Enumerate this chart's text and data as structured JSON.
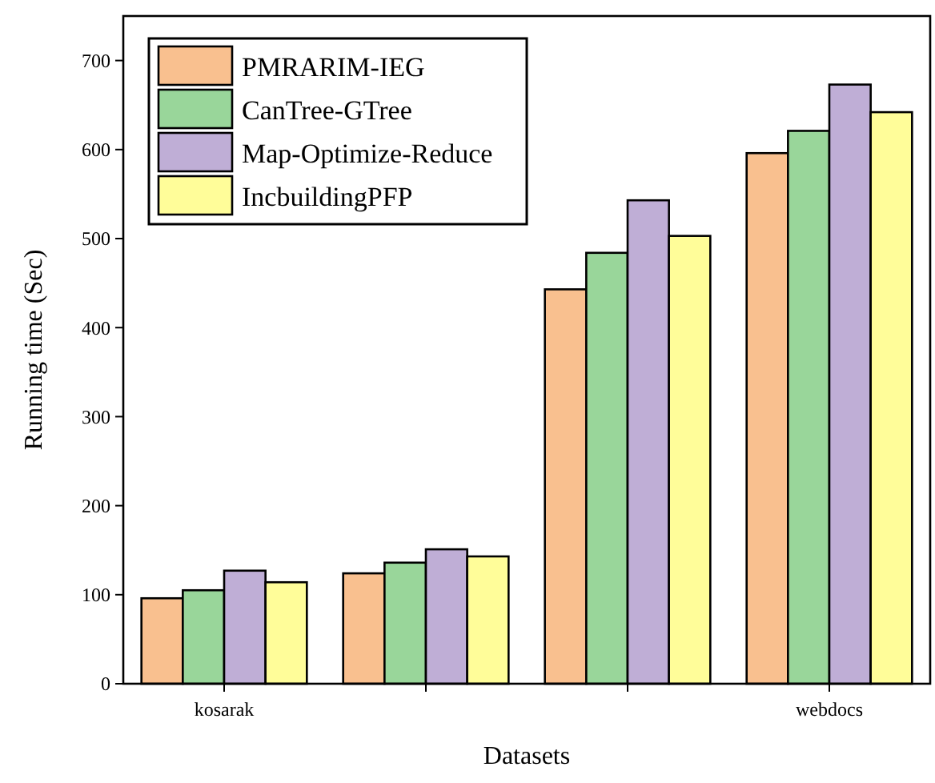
{
  "chart_data": {
    "type": "bar",
    "xlabel": "Datasets",
    "ylabel": "Running time (Sec)",
    "categories": [
      "kosarak",
      null,
      null,
      "webdocs"
    ],
    "series": [
      {
        "name": "PMRARIM-IEG",
        "color": "#f9c08f",
        "values": [
          96,
          124,
          443,
          596
        ]
      },
      {
        "name": "CanTree-GTree",
        "color": "#99d69a",
        "values": [
          105,
          136,
          484,
          621
        ]
      },
      {
        "name": "Map-Optimize-Reduce",
        "color": "#bfaed6",
        "values": [
          127,
          151,
          543,
          673
        ]
      },
      {
        "name": "IncbuildingPFP",
        "color": "#fffd99",
        "values": [
          114,
          143,
          503,
          642
        ]
      }
    ],
    "ylim": [
      0,
      750
    ],
    "yticks": [
      0,
      100,
      200,
      300,
      400,
      500,
      600,
      700
    ],
    "grid": false,
    "legend": "top left"
  }
}
